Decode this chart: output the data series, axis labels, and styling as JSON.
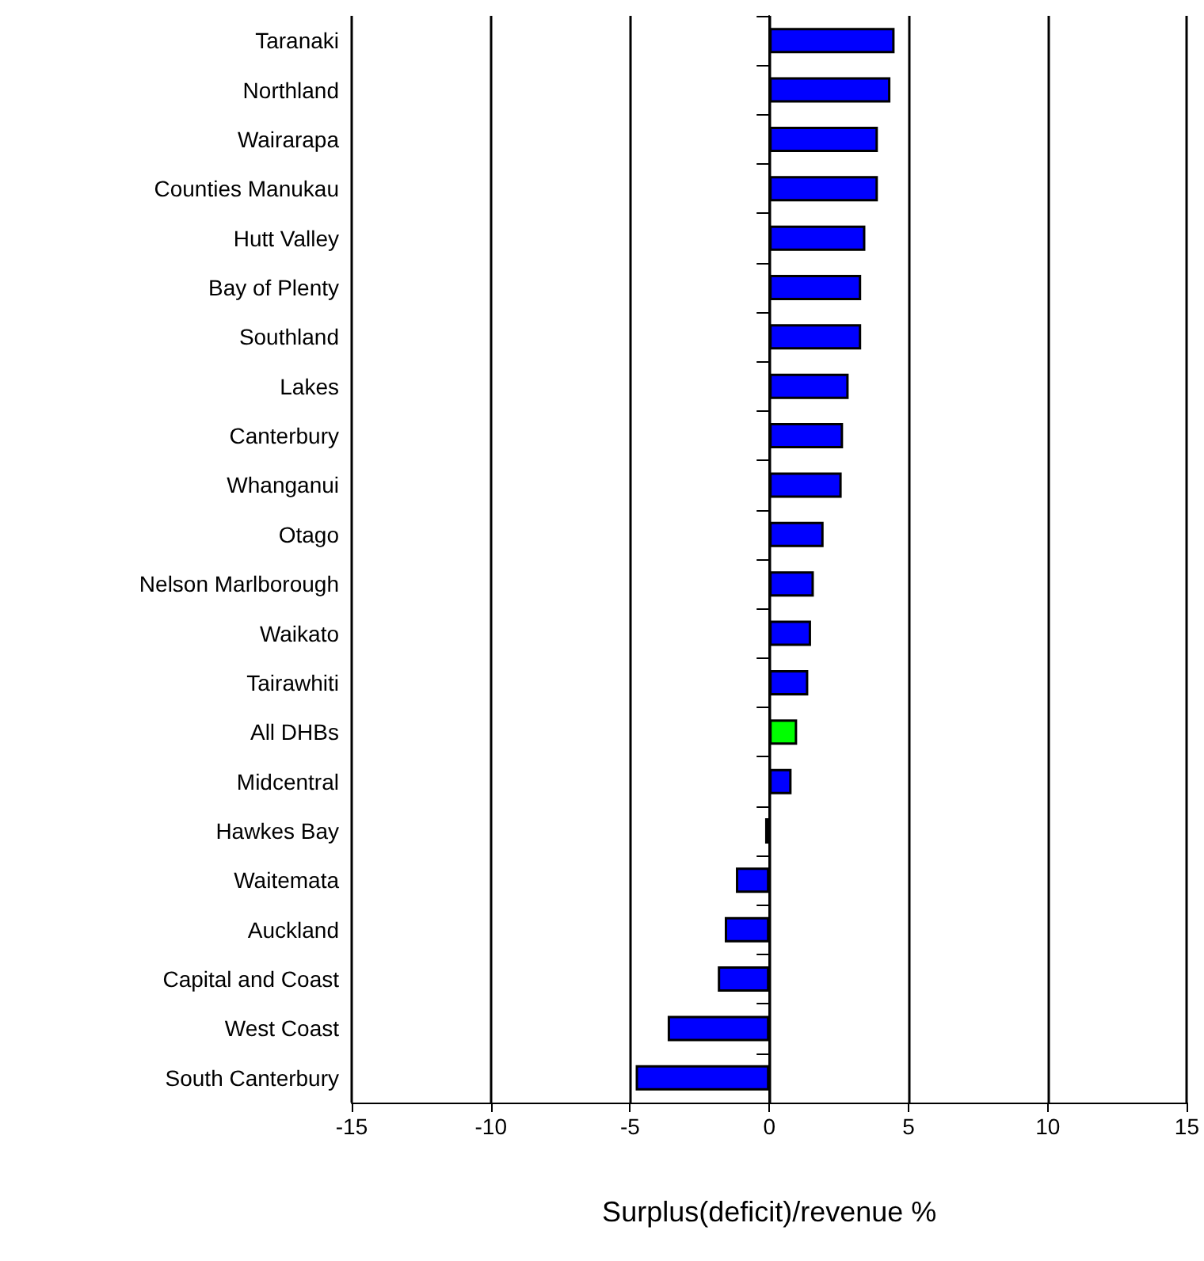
{
  "chart_data": {
    "type": "bar",
    "orientation": "horizontal",
    "xlabel": "Surplus(deficit)/revenue %",
    "categories": [
      "Taranaki",
      "Northland",
      "Wairarapa",
      "Counties Manukau",
      "Hutt Valley",
      "Bay of Plenty",
      "Southland",
      "Lakes",
      "Canterbury",
      "Whanganui",
      "Otago",
      "Nelson Marlborough",
      "Waikato",
      "Tairawhiti",
      "All DHBs",
      "Midcentral",
      "Hawkes Bay",
      "Waitemata",
      "Auckland",
      "Capital and Coast",
      "West Coast",
      "South Canterbury"
    ],
    "values": [
      4.5,
      4.35,
      3.9,
      3.9,
      3.45,
      3.3,
      3.3,
      2.85,
      2.65,
      2.6,
      1.95,
      1.6,
      1.5,
      1.4,
      1.0,
      0.8,
      -0.15,
      -1.2,
      -1.6,
      -1.85,
      -3.65,
      -4.8
    ],
    "colors": [
      "#0000ff",
      "#0000ff",
      "#0000ff",
      "#0000ff",
      "#0000ff",
      "#0000ff",
      "#0000ff",
      "#0000ff",
      "#0000ff",
      "#0000ff",
      "#0000ff",
      "#0000ff",
      "#0000ff",
      "#0000ff",
      "#00ff00",
      "#0000ff",
      "#0000ff",
      "#0000ff",
      "#0000ff",
      "#0000ff",
      "#0000ff",
      "#0000ff"
    ],
    "xlim": [
      -15,
      15
    ],
    "xticks": [
      -15,
      -10,
      -5,
      0,
      5,
      10,
      15
    ],
    "grid": "x"
  }
}
